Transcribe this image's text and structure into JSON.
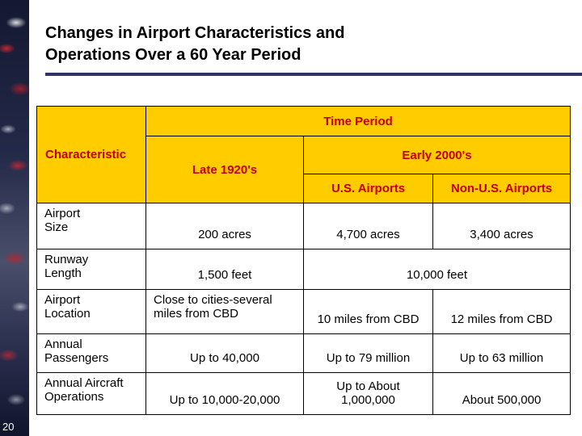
{
  "slide": {
    "title_line1": "Changes in Airport Characteristics and",
    "title_line2": "Operations Over a 60 Year Period",
    "page_number": "20"
  },
  "table": {
    "header": {
      "time_period": "Time Period",
      "characteristic": "Characteristic",
      "late_1920s": "Late 1920's",
      "early_2000s": "Early 2000's",
      "us_airports": "U.S. Airports",
      "non_us_airports": "Non-U.S. Airports"
    },
    "rows": [
      {
        "label": "Airport\nSize",
        "late_1920s": "200 acres",
        "us": "4,700 acres",
        "non_us": "3,400 acres"
      },
      {
        "label": "Runway\nLength",
        "late_1920s": "1,500 feet",
        "merged": "10,000 feet"
      },
      {
        "label": "Airport\nLocation",
        "late_1920s": "Close to cities-several miles from CBD",
        "us": "10 miles from CBD",
        "non_us": "12 miles from CBD"
      },
      {
        "label": "Annual\nPassengers",
        "late_1920s": "Up to 40,000",
        "us": "Up to 79 million",
        "non_us": "Up to 63 million"
      },
      {
        "label": "Annual Aircraft\nOperations",
        "late_1920s": "Up to 10,000-20,000",
        "us": "Up to About\n1,000,000",
        "non_us": "About 500,000"
      }
    ]
  },
  "colors": {
    "header_bg": "#FFCC00",
    "header_text": "#C00000",
    "title_rule": "#2E3566",
    "body_text": "#000000"
  }
}
